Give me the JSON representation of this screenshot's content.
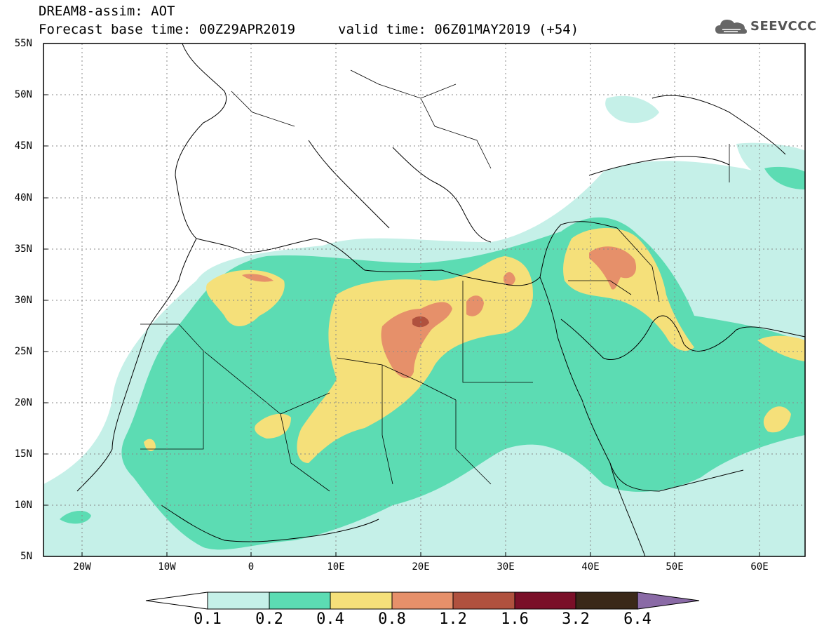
{
  "header": {
    "title": "DREAM8-assim: AOT",
    "base_time": "Forecast base time: 00Z29APR2019",
    "valid_time": "valid time: 06Z01MAY2019 (+54)"
  },
  "logo": {
    "text": "SEEVCCC",
    "icon": "cloud-icon"
  },
  "map": {
    "lon_range": [
      -25,
      65
    ],
    "lat_range": [
      5,
      55
    ],
    "lat_ticks": [
      "55N",
      "50N",
      "45N",
      "40N",
      "35N",
      "30N",
      "25N",
      "20N",
      "15N",
      "10N",
      "5N"
    ],
    "lon_ticks": [
      "20W",
      "10W",
      "0",
      "10E",
      "20E",
      "30E",
      "40E",
      "50E",
      "60E"
    ]
  },
  "colorbar": {
    "labels": [
      "0.1",
      "0.2",
      "0.4",
      "0.8",
      "1.2",
      "1.6",
      "3.2",
      "6.4"
    ],
    "colors": [
      "#c5f0e8",
      "#5cdcb3",
      "#f5e07a",
      "#e6906a",
      "#b0513e",
      "#7a0f28",
      "#3a2818",
      "#8a6aa6"
    ],
    "under_color": "#ffffff"
  }
}
